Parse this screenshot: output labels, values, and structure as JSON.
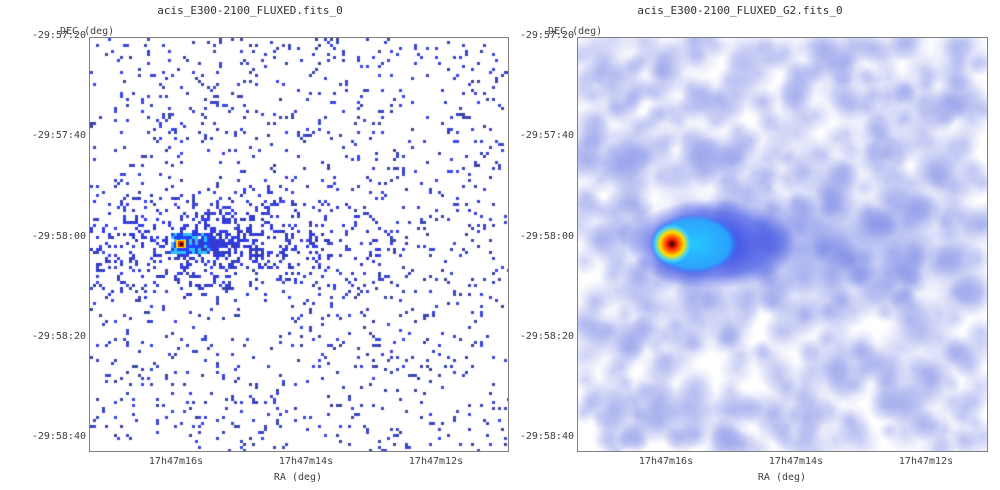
{
  "panels": [
    {
      "title": "acis_E300-2100_FLUXED.fits_0",
      "ylabel": "DEC (deg)",
      "xlabel": "RA (deg)",
      "yticks": [
        "-29:57:20",
        "-29:57:40",
        "-29:58:00",
        "-29:58:20",
        "-29:58:40"
      ],
      "xticks": [
        "17h47m16s",
        "17h47m14s",
        "17h47m12s"
      ],
      "style": "sparse-counts"
    },
    {
      "title": "acis_E300-2100_FLUXED_G2.fits_0",
      "ylabel": "DEC (deg)",
      "xlabel": "RA (deg)",
      "yticks": [
        "-29:57:20",
        "-29:57:40",
        "-29:58:00",
        "-29:58:20",
        "-29:58:40"
      ],
      "xticks": [
        "17h47m16s",
        "17h47m14s",
        "17h47m12s"
      ],
      "style": "smoothed"
    }
  ],
  "colors": {
    "low": "#3040ff",
    "mid": "#30c0ff",
    "high": "#ffe000",
    "peak": "#ff2000",
    "core": "#200000"
  }
}
